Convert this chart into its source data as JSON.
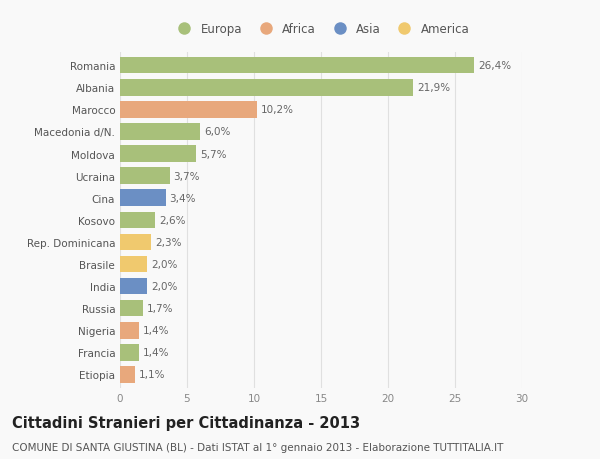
{
  "categories": [
    "Romania",
    "Albania",
    "Marocco",
    "Macedonia d/N.",
    "Moldova",
    "Ucraina",
    "Cina",
    "Kosovo",
    "Rep. Dominicana",
    "Brasile",
    "India",
    "Russia",
    "Nigeria",
    "Francia",
    "Etiopia"
  ],
  "values": [
    26.4,
    21.9,
    10.2,
    6.0,
    5.7,
    3.7,
    3.4,
    2.6,
    2.3,
    2.0,
    2.0,
    1.7,
    1.4,
    1.4,
    1.1
  ],
  "labels": [
    "26,4%",
    "21,9%",
    "10,2%",
    "6,0%",
    "5,7%",
    "3,7%",
    "3,4%",
    "2,6%",
    "2,3%",
    "2,0%",
    "2,0%",
    "1,7%",
    "1,4%",
    "1,4%",
    "1,1%"
  ],
  "continents": [
    "Europa",
    "Europa",
    "Africa",
    "Europa",
    "Europa",
    "Europa",
    "Asia",
    "Europa",
    "America",
    "America",
    "Asia",
    "Europa",
    "Africa",
    "Europa",
    "Africa"
  ],
  "colors": {
    "Europa": "#a8c07a",
    "Africa": "#e8a87c",
    "Asia": "#6b8fc4",
    "America": "#f0c96e"
  },
  "legend_order": [
    "Europa",
    "Africa",
    "Asia",
    "America"
  ],
  "xlim": [
    0,
    30
  ],
  "xticks": [
    0,
    5,
    10,
    15,
    20,
    25,
    30
  ],
  "title": "Cittadini Stranieri per Cittadinanza - 2013",
  "subtitle": "COMUNE DI SANTA GIUSTINA (BL) - Dati ISTAT al 1° gennaio 2013 - Elaborazione TUTTITALIA.IT",
  "bg_color": "#f9f9f9",
  "grid_color": "#e0e0e0",
  "bar_height": 0.75,
  "title_fontsize": 10.5,
  "subtitle_fontsize": 7.5,
  "tick_fontsize": 7.5,
  "label_fontsize": 7.5,
  "legend_fontsize": 8.5
}
